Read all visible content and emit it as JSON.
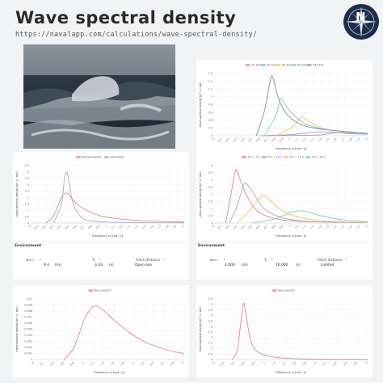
{
  "page": {
    "title": "Wave spectral density",
    "url": "https://navalapp.com/calculations/wave-spectral-density/"
  },
  "logo": {
    "letter": "N",
    "icon": "compass-rose-icon"
  },
  "photo": {
    "icon": "ocean-waves-photo"
  },
  "colors": {
    "pink": "#e8828f",
    "blue": "#6ab0e6",
    "yellow": "#f5c552",
    "teal": "#7ccfc5",
    "gray": "#8c8f96"
  },
  "env_left": {
    "title": "Environment",
    "field1_label": "w₁₉.₅",
    "field1_value": "9.4",
    "field1_unit": "(m)",
    "field2_label": "Tₚ",
    "field2_value": "3.43",
    "field2_unit": "(s)",
    "field3_label": "Fetch distance",
    "field3_value": "Open sea"
  },
  "env_right": {
    "title": "Environment",
    "field1_label": "w₁₉.₅",
    "field1_value": "4.000",
    "field1_unit": "(m)",
    "field2_label": "Tₚ",
    "field2_value": "10.000",
    "field2_unit": "(s)",
    "field3_label": "Fetch distance",
    "field3_value": "Limited"
  },
  "chart_data": [
    {
      "type": "line",
      "xlabel": "Frequency ω [rad / s]",
      "ylabel": "Wave spectral density [m² s / rad]",
      "xlim": [
        0,
        2.0
      ],
      "ylim": [
        0,
        1.6
      ],
      "yticks": [
        0,
        0.2,
        0.4,
        0.6,
        0.8,
        1.0,
        1.2,
        1.4,
        1.6
      ],
      "xticks": [
        0,
        0.1,
        0.2,
        0.3,
        0.4,
        0.5,
        0.6,
        0.7,
        0.8,
        0.9,
        1.0,
        1.1,
        1.2,
        1.3,
        1.4,
        1.5,
        1.6,
        1.7,
        1.8,
        1.9,
        2.0
      ],
      "series": [
        {
          "name": "10 km",
          "color": "#e8828f",
          "x": [
            0.6,
            1.35,
            1.6,
            1.9,
            2.0
          ],
          "y": [
            0,
            0.02,
            0.08,
            0.05,
            0.04
          ]
        },
        {
          "name": "30 km",
          "color": "#6ab0e6",
          "x": [
            0.6,
            1.0,
            1.4,
            1.8,
            2.0
          ],
          "y": [
            0,
            0.03,
            0.1,
            0.05,
            0.04
          ]
        },
        {
          "name": "60 km",
          "color": "#f5c552",
          "x": [
            0.8,
            1.0,
            1.1,
            1.15,
            1.3,
            1.5,
            2.0
          ],
          "y": [
            0,
            0.2,
            0.4,
            0.48,
            0.3,
            0.15,
            0.06
          ]
        },
        {
          "name": "90 km",
          "color": "#7ccfc5",
          "x": [
            0.65,
            0.8,
            0.85,
            0.88,
            1.0,
            1.2,
            1.5,
            2.0
          ],
          "y": [
            0,
            0.5,
            0.85,
            0.95,
            0.6,
            0.3,
            0.15,
            0.06
          ]
        },
        {
          "name": "240 km",
          "color": "#8c8f96",
          "x": [
            0.55,
            0.65,
            0.72,
            0.76,
            0.85,
            1.0,
            1.3,
            2.0
          ],
          "y": [
            0,
            0.6,
            1.3,
            1.52,
            0.9,
            0.45,
            0.2,
            0.06
          ]
        }
      ]
    },
    {
      "type": "line",
      "xlabel": "Frequency ω [rad / s]",
      "ylabel": "Wave spectral density [m² s / rad]",
      "xlim": [
        0,
        2.0
      ],
      "ylim": [
        0,
        4.5
      ],
      "yticks": [
        0,
        0.5,
        1.0,
        1.5,
        2.0,
        2.5,
        3.0,
        3.5,
        4.0,
        4.5
      ],
      "xticks": [
        0,
        0.1,
        0.2,
        0.3,
        0.4,
        0.5,
        0.6,
        0.7,
        0.8,
        0.9,
        1.0,
        1.1,
        1.2,
        1.3,
        1.4,
        1.5,
        1.6,
        1.7,
        1.8,
        1.9,
        2.0
      ],
      "series": [
        {
          "name": "Bretschneider",
          "color": "#e8828f",
          "x": [
            0.2,
            0.3,
            0.4,
            0.45,
            0.5,
            0.6,
            0.8,
            1.0,
            1.4,
            2.0
          ],
          "y": [
            0,
            0.6,
            2.0,
            2.35,
            2.2,
            1.5,
            0.8,
            0.45,
            0.2,
            0.08
          ]
        },
        {
          "name": "Unlimited",
          "color": "#aaa8ce",
          "x": [
            0.3,
            0.4,
            0.44,
            0.47,
            0.5,
            0.55,
            0.65,
            0.8,
            1.2,
            2.0
          ],
          "y": [
            0,
            1.5,
            3.5,
            4.0,
            3.2,
            1.6,
            0.5,
            0.15,
            0.05,
            0.02
          ]
        }
      ]
    },
    {
      "type": "line",
      "xlabel": "Frequency ω [rad / s]",
      "ylabel": "Wave spectral density [m² s / rad]",
      "xlim": [
        0,
        2.0
      ],
      "ylim": [
        0,
        4.0
      ],
      "yticks": [
        0,
        0.5,
        1.0,
        1.5,
        2.0,
        2.5,
        3.0,
        3.5,
        4.0
      ],
      "xticks": [
        0,
        0.1,
        0.2,
        0.3,
        0.4,
        0.5,
        0.6,
        0.7,
        0.8,
        0.9,
        1.0,
        1.1,
        1.2,
        1.3,
        1.4,
        1.5,
        1.6,
        1.7,
        1.8,
        1.9,
        2.0
      ],
      "series": [
        {
          "name": "TO = 5 s",
          "color": "#e8828f",
          "x": [
            0.15,
            0.22,
            0.27,
            0.3,
            0.4,
            0.55,
            0.8,
            1.2,
            2.0
          ],
          "y": [
            0,
            2.0,
            3.5,
            3.6,
            2.2,
            0.9,
            0.3,
            0.1,
            0.03
          ]
        },
        {
          "name": "TO = 10 s",
          "color": "#aaa8ce",
          "x": [
            0.2,
            0.3,
            0.38,
            0.42,
            0.5,
            0.65,
            0.9,
            1.3,
            2.0
          ],
          "y": [
            0,
            1.2,
            2.6,
            2.75,
            2.2,
            1.0,
            0.35,
            0.1,
            0.03
          ]
        },
        {
          "name": "TO = 15 s",
          "color": "#f5c552",
          "x": [
            0.3,
            0.45,
            0.6,
            0.65,
            0.75,
            0.9,
            1.2,
            1.6,
            2.0
          ],
          "y": [
            0,
            0.8,
            1.8,
            1.9,
            1.5,
            0.8,
            0.3,
            0.1,
            0.05
          ]
        },
        {
          "name": "TO = 20 s",
          "color": "#7ccfc5",
          "x": [
            0.5,
            0.8,
            1.0,
            1.1,
            1.2,
            1.4,
            1.7,
            2.0
          ],
          "y": [
            0,
            0.3,
            0.75,
            0.85,
            0.8,
            0.5,
            0.2,
            0.1
          ]
        }
      ]
    },
    {
      "type": "line",
      "xlabel": "Frequency ω [rad / s]",
      "ylabel": "Wave spectral density [m² s / rad]",
      "xlim": [
        0,
        3.0
      ],
      "ylim": [
        0,
        0.01
      ],
      "yticks": [
        0,
        0.001,
        0.002,
        0.003,
        0.004,
        0.005,
        0.006,
        0.007,
        0.008,
        0.009,
        0.01
      ],
      "xticks": [
        0,
        0.2,
        0.4,
        0.6,
        0.8,
        1.0,
        1.2,
        1.4,
        1.6,
        1.8,
        2.0,
        2.2,
        2.4,
        2.6,
        2.8,
        3.0
      ],
      "series": [
        {
          "name": "Sea spectra",
          "color": "#e8828f",
          "x": [
            0.6,
            0.8,
            1.0,
            1.15,
            1.25,
            1.4,
            1.6,
            1.9,
            2.2,
            2.5,
            2.8,
            3.0
          ],
          "y": [
            0,
            0.002,
            0.0065,
            0.0085,
            0.0088,
            0.008,
            0.0065,
            0.0045,
            0.003,
            0.002,
            0.0013,
            0.001
          ]
        }
      ]
    },
    {
      "type": "line",
      "xlabel": "Frequency ω [rad / s]",
      "ylabel": "Wave spectral density [m² s / rad]",
      "xlim": [
        0,
        3.0
      ],
      "ylim": [
        0,
        5.5
      ],
      "yticks": [
        0,
        0.5,
        1.0,
        1.5,
        2.0,
        2.5,
        3.0,
        3.5,
        4.0,
        4.5,
        5.0,
        5.5
      ],
      "xticks": [
        0,
        0.2,
        0.4,
        0.6,
        0.8,
        1.0,
        1.2,
        1.4,
        1.6,
        1.8,
        2.0,
        2.2,
        2.4,
        2.6,
        2.8,
        3.0
      ],
      "series": [
        {
          "name": "Sea spectra",
          "color": "#e8828f",
          "x": [
            0.35,
            0.45,
            0.5,
            0.55,
            0.58,
            0.62,
            0.7,
            0.8,
            1.0,
            1.3,
            1.8,
            3.0
          ],
          "y": [
            0,
            0.8,
            2.5,
            4.5,
            5.1,
            4.2,
            2.0,
            0.9,
            0.4,
            0.15,
            0.05,
            0.02
          ]
        }
      ]
    }
  ]
}
